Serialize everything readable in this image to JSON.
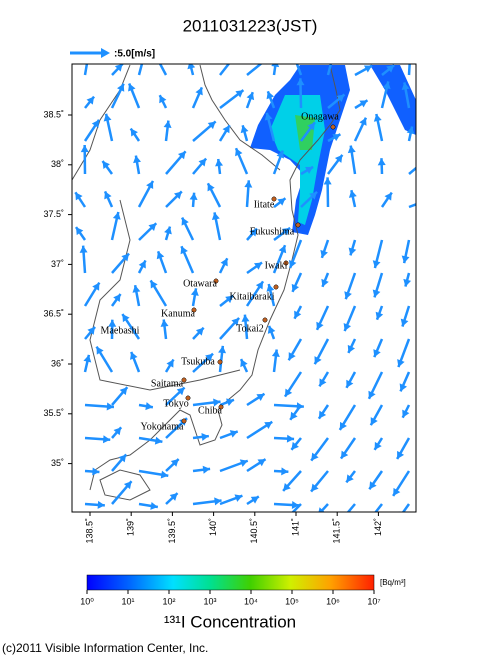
{
  "header": {
    "title": "2011031223(JST)"
  },
  "legend": {
    "wind_scale": ":5.0[m/s]"
  },
  "map": {
    "lat_ticks": [
      {
        "value": 38.5,
        "label": "38.5˚"
      },
      {
        "value": 38,
        "label": "38˚"
      },
      {
        "value": 37.5,
        "label": "37.5˚"
      },
      {
        "value": 37,
        "label": "37˚"
      },
      {
        "value": 36.5,
        "label": "36.5˚"
      },
      {
        "value": 36,
        "label": "36˚"
      },
      {
        "value": 35.5,
        "label": "35.5˚"
      },
      {
        "value": 35,
        "label": "35˚"
      }
    ],
    "lon_ticks": [
      {
        "value": 138.5,
        "label": "138.5˚"
      },
      {
        "value": 139,
        "label": "139˚"
      },
      {
        "value": 139.5,
        "label": "139.5˚"
      },
      {
        "value": 140,
        "label": "140˚"
      },
      {
        "value": 140.5,
        "label": "140.5˚"
      },
      {
        "value": 141,
        "label": "141˚"
      },
      {
        "value": 141.5,
        "label": "141.5˚"
      },
      {
        "value": 142,
        "label": "142˚"
      }
    ],
    "places": [
      "Onagawa",
      "Iitate",
      "Fukushima",
      "Iwaki",
      "Otawara",
      "Kitaibaraki",
      "Kanuma",
      "Tokai2",
      "Maebashi",
      "Tsukuba",
      "Saitama",
      "Tokyo",
      "Chiba",
      "Yokohama"
    ]
  },
  "colorbar": {
    "labels": [
      "10⁰",
      "10¹",
      "10²",
      "10³",
      "10⁴",
      "10⁵",
      "10⁶",
      "10⁷"
    ],
    "unit": "[Bq/m³]",
    "title": "¹³¹I Concentration"
  },
  "footer": {
    "copyright": "(c)2011 Visible Information Center, Inc."
  }
}
